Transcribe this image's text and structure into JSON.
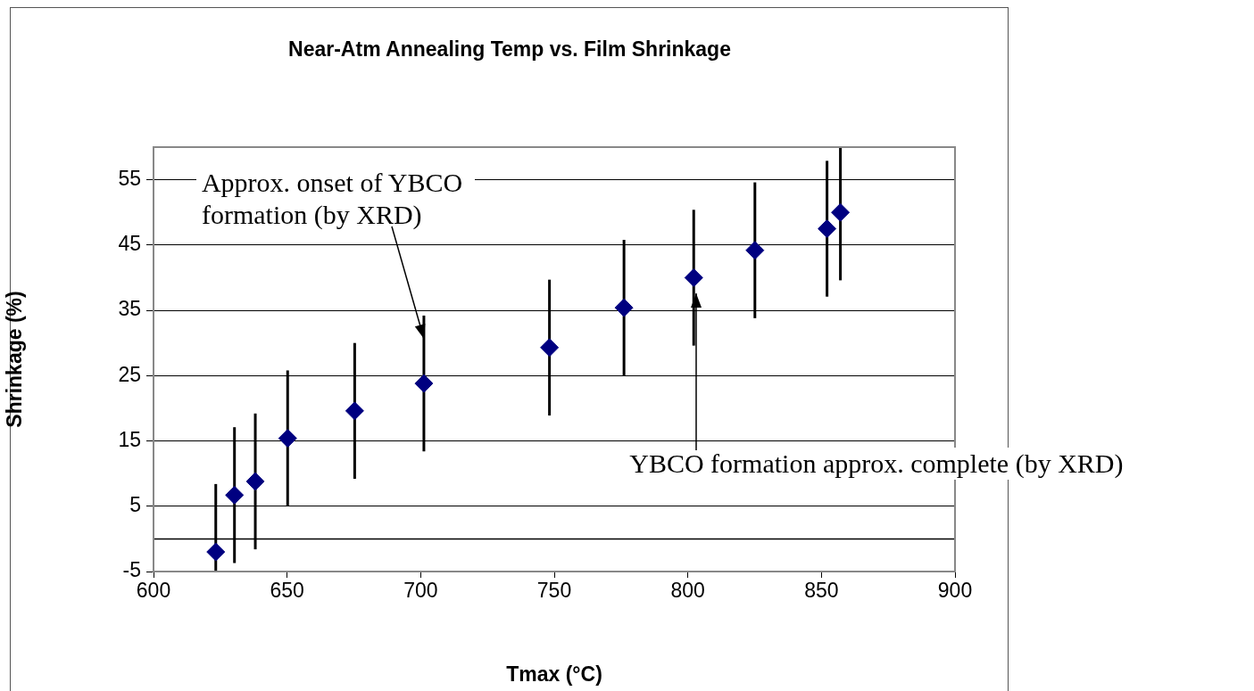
{
  "chart_data": {
    "type": "scatter",
    "title": "Near-Atm Annealing Temp vs. Film Shrinkage",
    "xlabel": "Tmax (°C)",
    "ylabel": "Shrinkage (%)",
    "x": [
      623.3,
      630.3,
      638.1,
      650.2,
      675.3,
      701.2,
      748.2,
      776.1,
      802.2,
      825.1,
      852.1,
      857.1
    ],
    "series": [
      {
        "color": "#000080",
        "values": [
          -2.0,
          6.7,
          8.8,
          15.4,
          19.6,
          23.8,
          29.3,
          35.4,
          40.0,
          44.2,
          47.5,
          50.0
        ],
        "errors": [
          [
            -5,
            8.4
          ],
          10.4,
          10.4,
          10.4,
          10.4,
          10.4,
          10.4,
          10.4,
          10.4,
          10.4,
          10.4,
          [
            39.6,
            60
          ]
        ]
      }
    ],
    "marker": "diamond",
    "grid": "y",
    "xlim": [
      600,
      900
    ],
    "xticks": [
      600,
      650,
      700,
      750,
      800,
      850,
      900
    ],
    "ylim": [
      -5,
      60
    ],
    "yticks": [
      -5,
      5,
      15,
      25,
      35,
      45,
      55
    ],
    "ref_lines": [
      {
        "axis": "y",
        "value": 0,
        "color": "#000000"
      }
    ],
    "annotations": [
      {
        "text": "Approx. onset of YBCO formation (by XRD)",
        "x": 701.2,
        "y": 30.7
      },
      {
        "text": "YBCO formation approx. complete (by XRD)",
        "x": 803.2,
        "y": 37.6
      }
    ]
  }
}
